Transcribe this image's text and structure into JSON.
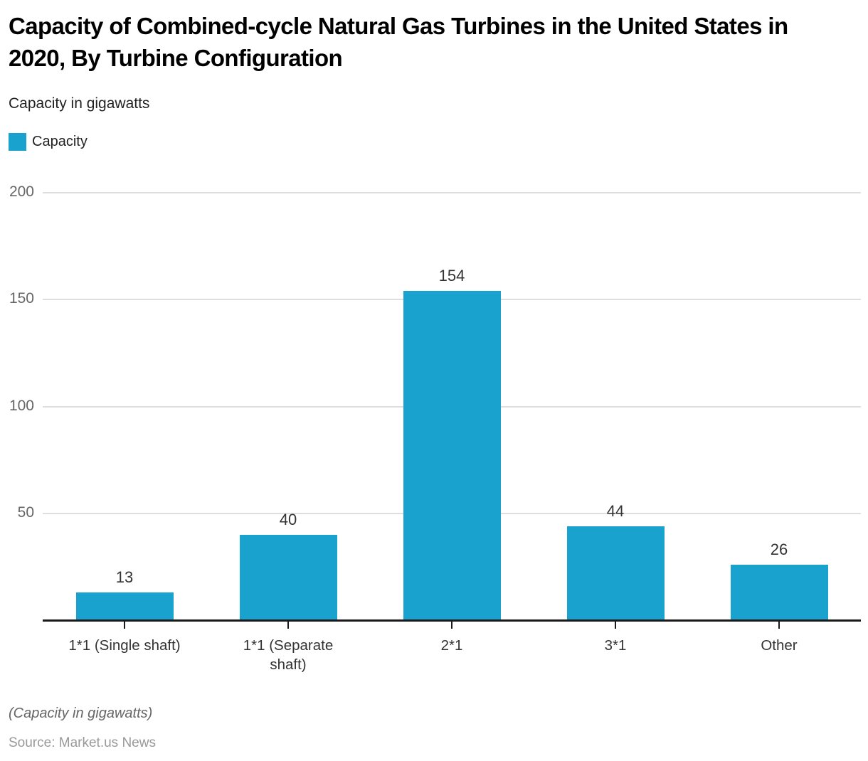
{
  "header": {
    "title": "Capacity of Combined-cycle Natural Gas Turbines in the United States in 2020, By Turbine Configuration",
    "subtitle": "Capacity in gigawatts"
  },
  "legend": {
    "label": "Capacity",
    "color": "#19A2CE"
  },
  "chart_data": {
    "type": "bar",
    "title": "Capacity of Combined-cycle Natural Gas Turbines in the United States in 2020, By Turbine Configuration",
    "subtitle": "Capacity in gigawatts",
    "categories": [
      "1*1 (Single shaft)",
      "1*1 (Separate shaft)",
      "2*1",
      "3*1",
      "Other"
    ],
    "values": [
      13,
      40,
      154,
      44,
      26
    ],
    "series_name": "Capacity",
    "xlabel": "",
    "ylabel": "Capacity in gigawatts",
    "ylim": [
      0,
      200
    ],
    "yticks": [
      200,
      150,
      100,
      50
    ],
    "grid": true,
    "legend_position": "top-left",
    "bar_color": "#19A2CE",
    "value_labels": true
  },
  "footer": {
    "note": "(Capacity in gigawatts)",
    "source": "Source: Market.us News"
  },
  "colors": {
    "bar": "#19A2CE",
    "grid": "#dedede",
    "axis": "#1a1a1a",
    "ytick_text": "#666666",
    "xtick_text": "#333333",
    "value_text": "#333333",
    "note_text": "#666666",
    "source_text": "#999999"
  }
}
